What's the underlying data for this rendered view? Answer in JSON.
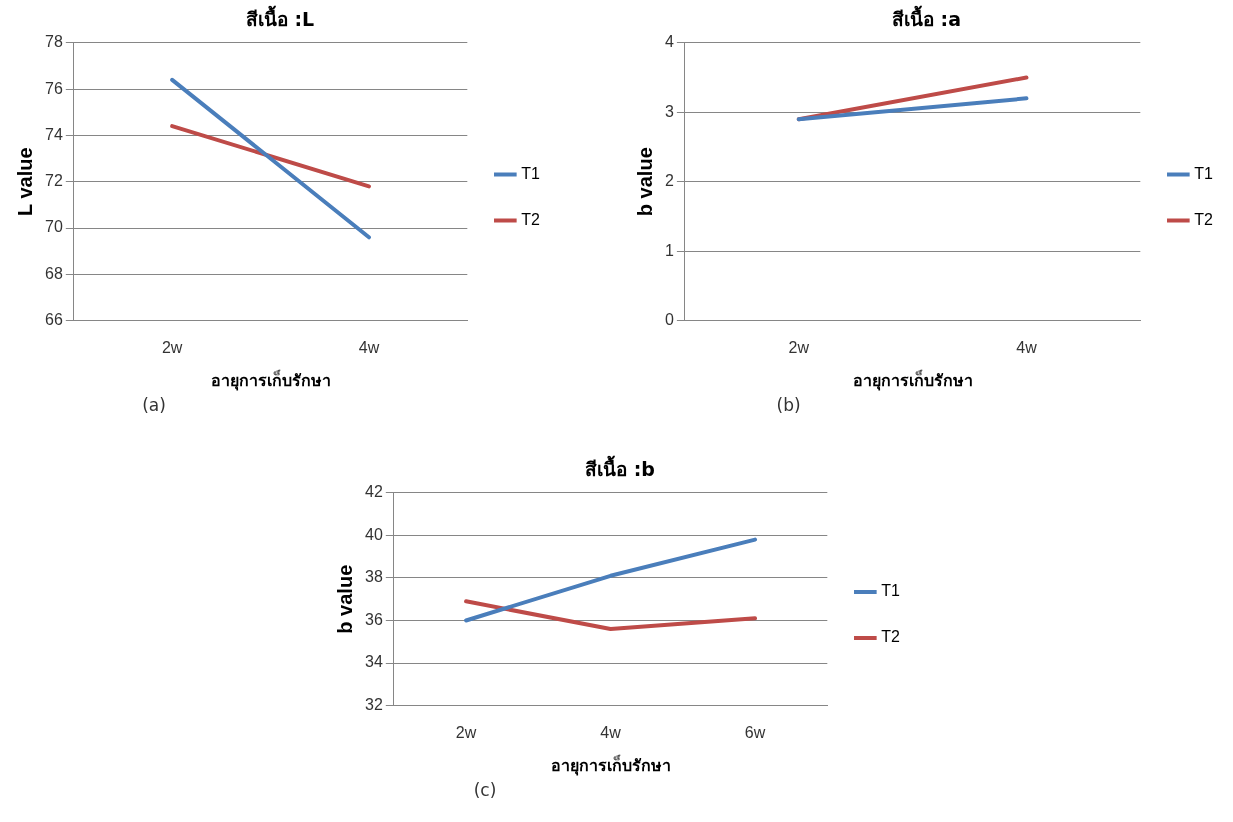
{
  "chart_data": [
    {
      "type": "line",
      "title": "สีเนื้อ :L",
      "xlabel": "อายุการเก็บรักษา",
      "ylabel": "L value",
      "categories": [
        "2w",
        "4w"
      ],
      "series": [
        {
          "name": "T1",
          "color": "#4a7ebb",
          "values": [
            76.4,
            69.6
          ]
        },
        {
          "name": "T2",
          "color": "#be4b48",
          "values": [
            74.4,
            71.8
          ]
        }
      ],
      "ylim": [
        66,
        78
      ],
      "yticks": [
        66,
        68,
        70,
        72,
        74,
        76,
        78
      ],
      "grid": "y",
      "legend": "right",
      "marker": "none",
      "annotations": [
        "(a)"
      ]
    },
    {
      "type": "line",
      "title": "สีเนื้อ :a",
      "xlabel": "อายุการเก็บรักษา",
      "ylabel": "b value",
      "categories": [
        "2w",
        "4w"
      ],
      "series": [
        {
          "name": "T1",
          "color": "#4a7ebb",
          "values": [
            2.9,
            3.2
          ]
        },
        {
          "name": "T2",
          "color": "#be4b48",
          "values": [
            2.9,
            3.5
          ]
        }
      ],
      "ylim": [
        0,
        4
      ],
      "yticks": [
        0,
        1,
        2,
        3,
        4
      ],
      "grid": "y",
      "legend": "right",
      "marker": "none",
      "annotations": [
        "(b)"
      ]
    },
    {
      "type": "line",
      "title": "สีเนื้อ :b",
      "xlabel": "อายุการเก็บรักษา",
      "ylabel": "b value",
      "categories": [
        "2w",
        "4w",
        "6w"
      ],
      "series": [
        {
          "name": "T1",
          "color": "#4a7ebb",
          "values": [
            36.0,
            38.1,
            39.8
          ]
        },
        {
          "name": "T2",
          "color": "#be4b48",
          "values": [
            36.9,
            35.6,
            36.1
          ]
        }
      ],
      "ylim": [
        32,
        42
      ],
      "yticks": [
        32,
        34,
        36,
        38,
        40,
        42
      ],
      "grid": "y",
      "legend": "right",
      "marker": "none",
      "annotations": [
        "(c)"
      ]
    }
  ]
}
